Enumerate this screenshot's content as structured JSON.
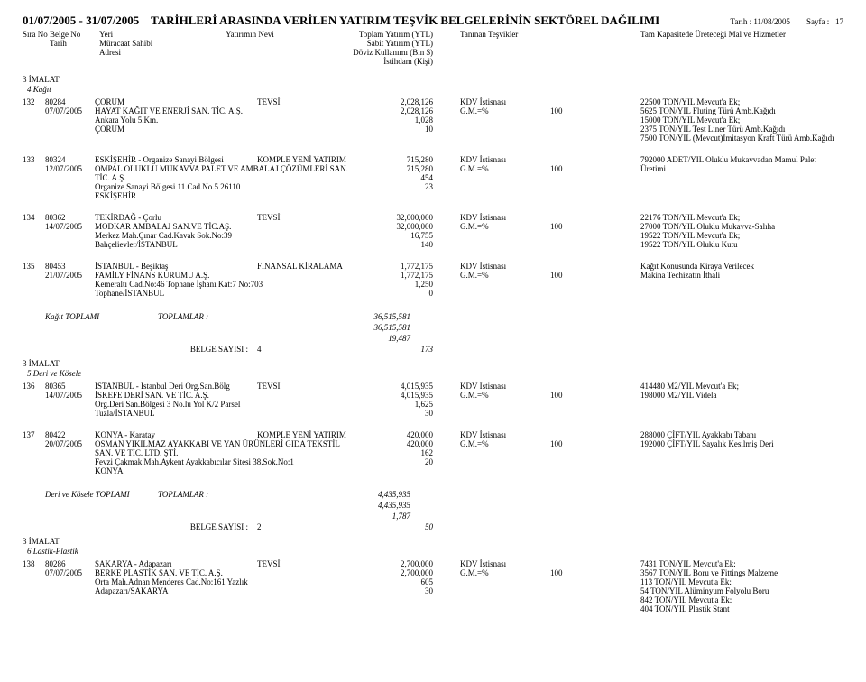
{
  "page_header": {
    "date_from": "01/07/2005",
    "date_to": "31/07/2005",
    "title_rest": "TARİHLERİ ARASINDA VERİLEN YATIRIM TEŞVİK BELGELERİNİN SEKTÖREL DAĞILIMI",
    "print_date_label": "Tarih :",
    "print_date": "11/08/2005",
    "page_label": "Sayfa :",
    "page_no": "17"
  },
  "col_headers": {
    "sira": "Sıra No",
    "belge": "Belge No",
    "tarih": "Tarih",
    "yeri": "Yeri",
    "muracaat": "Müracaat Sahibi",
    "adresi": "Adresi",
    "nevi": "Yatırımın Nevi",
    "toplam": "Toplam Yatırım (YTL)",
    "sabit": "Sabit Yatırım (YTL)",
    "doviz": "Döviz Kullanımı (Bin $)",
    "istihdam": "İstihdam (Kişi)",
    "tesvik": "Tanınan Teşvikler",
    "tam": "Tam Kapasitede Üreteceği Mal ve Hizmetler"
  },
  "groups": [
    {
      "sector_line": "3  İMALAT",
      "subsector": "4  Kağıt",
      "records": [
        {
          "sira": "132",
          "belge": "80284",
          "tarih": "07/07/2005",
          "yeri": "ÇORUM",
          "nevi": "TEVSİ",
          "firm": "HAYAT KAĞIT VE ENERJİ SAN. TİC. A.Ş.",
          "addr1": "Ankara Yolu 5.Km.",
          "addr2": "ÇORUM",
          "n_toplam": "2,028,126",
          "n_sabit": "2,028,126",
          "n_doviz": "1,028",
          "n_ist": "10",
          "tesvik1": "KDV İstisnası",
          "tesvik2": "G.M.=%",
          "ratio": "100",
          "prods": [
            "22500 TON/YIL Mevcut'a Ek;",
            "5625 TON/YIL Fluting Türü Amb.Kağıdı",
            "15000 TON/YIL Mevcut'a Ek;",
            "2375 TON/YIL Test Liner Türü Amb.Kağıdı",
            "7500 TON/YIL (Mevcut)İmitasyon Kraft Türü Amb.Kağıdı"
          ]
        },
        {
          "sira": "133",
          "belge": "80324",
          "tarih": "12/07/2005",
          "yeri": "ESKİŞEHİR - Organize Sanayi Bölgesi",
          "nevi": "KOMPLE YENİ YATIRIM",
          "firm": "OMPAL OLUKLU MUKAVVA PALET VE AMBALAJ ÇÖZÜMLERİ SAN. TİC. A.Ş.",
          "addr1": "Organize Sanayi Bölgesi 11.Cad.No.5 26110",
          "addr2": "ESKİŞEHİR",
          "n_toplam": "715,280",
          "n_sabit": "715,280",
          "n_doviz": "454",
          "n_ist": "23",
          "tesvik1": "KDV İstisnası",
          "tesvik2": "G.M.=%",
          "ratio": "100",
          "prods": [
            "792000 ADET/YIL Oluklu Mukavvadan Mamul Palet Üretimi"
          ]
        },
        {
          "sira": "134",
          "belge": "80362",
          "tarih": "14/07/2005",
          "yeri": "TEKİRDAĞ - Çorlu",
          "nevi": "TEVSİ",
          "firm": "MODKAR AMBALAJ SAN.VE TİC.AŞ.",
          "addr1": "Merkez Mah.Çınar Cad.Kavak Sok.No:39",
          "addr2": "Bahçelievler/İSTANBUL",
          "n_toplam": "32,000,000",
          "n_sabit": "32,000,000",
          "n_doviz": "16,755",
          "n_ist": "140",
          "tesvik1": "KDV İstisnası",
          "tesvik2": "G.M.=%",
          "ratio": "100",
          "prods": [
            "22176 TON/YIL Mevcut'a Ek;",
            "27000 TON/YIL Oluklu Mukavva-Salıha",
            "19522 TON/YIL Mevcut'a Ek;",
            "19522 TON/YIL Oluklu Kutu"
          ]
        },
        {
          "sira": "135",
          "belge": "80453",
          "tarih": "21/07/2005",
          "yeri": "İSTANBUL - Beşiktaş",
          "nevi": "FİNANSAL KİRALAMA",
          "firm": "FAMİLY FİNANS KURUMU A.Ş.",
          "addr1": "Kemeraltı Cad.No:46 Tophane İşhanı Kat:7 No:703",
          "addr2": "Tophane/İSTANBUL",
          "n_toplam": "1,772,175",
          "n_sabit": "1,772,175",
          "n_doviz": "1,250",
          "n_ist": "0",
          "tesvik1": "KDV İstisnası",
          "tesvik2": "G.M.=%",
          "ratio": "100",
          "prods": [
            "Kağıt Konusunda Kiraya Verilecek",
            "Makina Techizatın İthali"
          ]
        }
      ],
      "total_label": "Kağıt TOPLAMI",
      "toplamlar_label": "TOPLAMLAR :",
      "tot1": "36,515,581",
      "tot2": "36,515,581",
      "tot3": "19,487",
      "tot4": "173",
      "belge_sayisi_label": "BELGE SAYISI :",
      "belge_sayisi": "4"
    },
    {
      "sector_line": "3  İMALAT",
      "subsector": "5  Deri ve Kösele",
      "records": [
        {
          "sira": "136",
          "belge": "80365",
          "tarih": "14/07/2005",
          "yeri": "İSTANBUL - İstanbul Deri Org.San.Bölg",
          "nevi": "TEVSİ",
          "firm": "İSKEFE DERİ SAN. VE TİC. A.Ş.",
          "addr1": "Org.Deri San.Bölgesi 3 No.lu Yol K/2 Parsel",
          "addr2": "Tuzla/İSTANBUL",
          "n_toplam": "4,015,935",
          "n_sabit": "4,015,935",
          "n_doviz": "1,625",
          "n_ist": "30",
          "tesvik1": "KDV İstisnası",
          "tesvik2": "G.M.=%",
          "ratio": "100",
          "prods": [
            "414480 M2/YIL Mevcut'a Ek;",
            "198000 M2/YIL Videla"
          ]
        },
        {
          "sira": "137",
          "belge": "80422",
          "tarih": "20/07/2005",
          "yeri": "KONYA - Karatay",
          "nevi": "KOMPLE YENİ YATIRIM",
          "firm": "OSMAN YIKILMAZ AYAKKABI VE YAN ÜRÜNLERİ GIDA TEKSTİL SAN. VE TİC. LTD. ŞTİ.",
          "addr1": "Fevzi Çakmak Mah.Aykent Ayakkabıcılar Sitesi 38.Sok.No:1",
          "addr2": "KONYA",
          "n_toplam": "420,000",
          "n_sabit": "420,000",
          "n_doviz": "162",
          "n_ist": "20",
          "tesvik1": "KDV İstisnası",
          "tesvik2": "G.M.=%",
          "ratio": "100",
          "prods": [
            "288000 ÇİFT/YIL Ayakkabı Tabanı",
            "192000 ÇİFT/YIL Sayalık Kesilmiş Deri"
          ]
        }
      ],
      "total_label": "Deri ve Kösele TOPLAMI",
      "toplamlar_label": "TOPLAMLAR :",
      "tot1": "4,435,935",
      "tot2": "4,435,935",
      "tot3": "1,787",
      "tot4": "50",
      "belge_sayisi_label": "BELGE SAYISI :",
      "belge_sayisi": "2"
    },
    {
      "sector_line": "3  İMALAT",
      "subsector": "6  Lastik-Plastik",
      "records": [
        {
          "sira": "138",
          "belge": "80286",
          "tarih": "07/07/2005",
          "yeri": "SAKARYA - Adapazarı",
          "nevi": "TEVSİ",
          "firm": "BERKE PLASTİK SAN. VE TİC. A.Ş.",
          "addr1": "Orta Mah.Adnan Menderes Cad.No:161 Yazlık",
          "addr2": "Adapazarı/SAKARYA",
          "n_toplam": "2,700,000",
          "n_sabit": "2,700,000",
          "n_doviz": "605",
          "n_ist": "30",
          "tesvik1": "KDV İstisnası",
          "tesvik2": "G.M.=%",
          "ratio": "100",
          "prods": [
            "7431 TON/YIL Mevcut'a Ek:",
            "3567 TON/YIL Boru ve Fittings Malzeme",
            "113 TON/YIL Mevcut'a Ek:",
            "54 TON/YIL Alüminyum Folyolu Boru",
            "842 TON/YIL Mevcut'a Ek:",
            "404 TON/YIL Plastik Stant"
          ]
        }
      ]
    }
  ]
}
